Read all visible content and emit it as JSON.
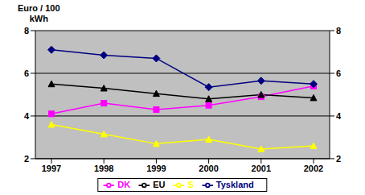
{
  "chart_data": {
    "type": "line",
    "y_label": "Euro / 100 kWh",
    "categories": [
      "1997",
      "1998",
      "1999",
      "2000",
      "2001",
      "2002"
    ],
    "series": [
      {
        "name": "DK",
        "color": "#ff00ff",
        "marker": "square",
        "values": [
          4.1,
          4.6,
          4.3,
          4.5,
          4.9,
          5.4
        ]
      },
      {
        "name": "S",
        "color": "#ffff00",
        "marker": "triangle",
        "values": [
          3.6,
          3.15,
          2.7,
          2.9,
          2.45,
          2.6
        ]
      },
      {
        "name": "EU",
        "color": "#000000",
        "marker": "triangle",
        "values": [
          5.5,
          5.3,
          5.05,
          4.8,
          5.0,
          4.85
        ]
      },
      {
        "name": "Tyskland",
        "color": "#000080",
        "marker": "diamond",
        "values": [
          7.1,
          6.85,
          6.7,
          5.35,
          5.65,
          5.5
        ]
      }
    ],
    "ylim": [
      2,
      8
    ],
    "yticks": [
      2,
      4,
      6,
      8
    ],
    "y2lim": [
      2,
      8
    ],
    "y2ticks": [
      2,
      4,
      6,
      8
    ],
    "grid": true,
    "legend": "bottom"
  }
}
